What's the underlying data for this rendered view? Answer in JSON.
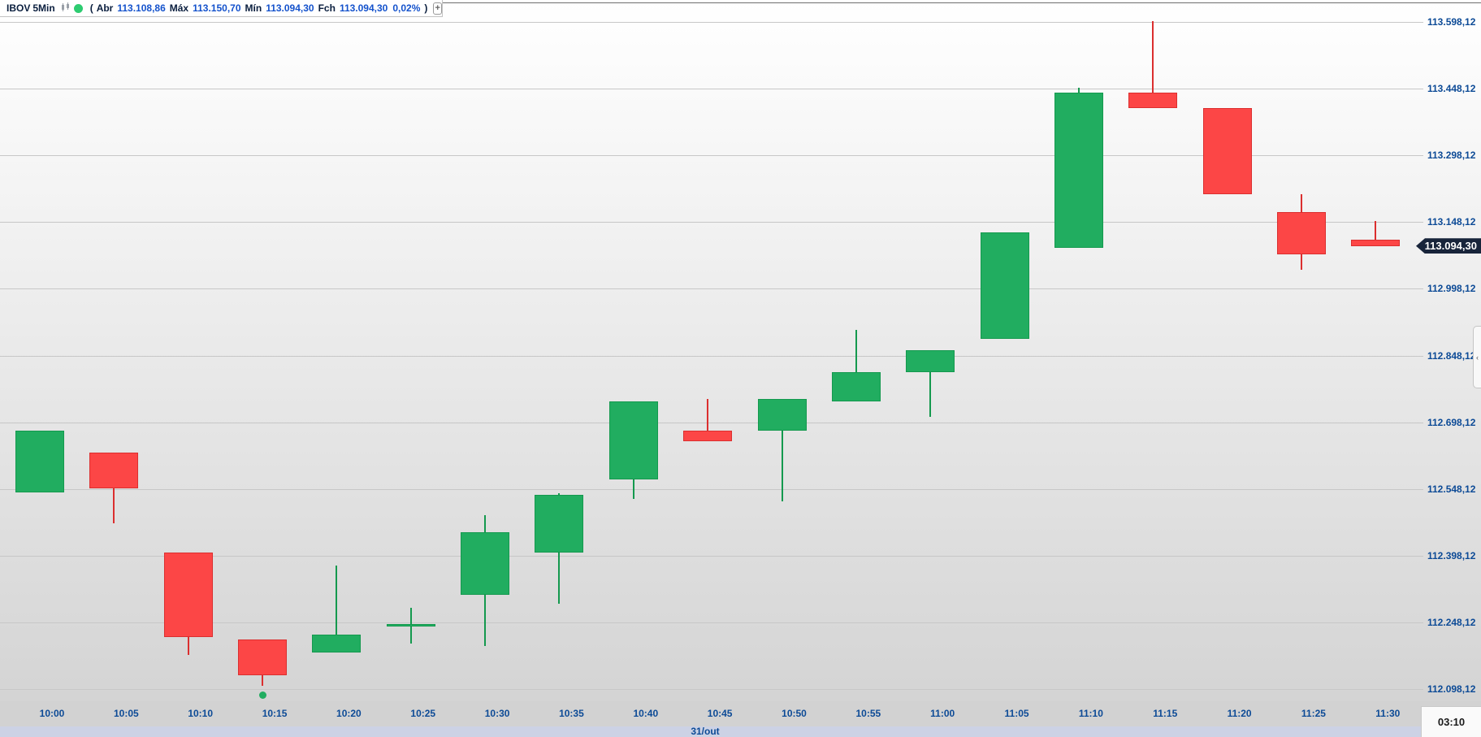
{
  "header": {
    "symbol": "IBOV",
    "timeframe": "5Min",
    "lparen": "(",
    "open_label": "Abr",
    "open_value": "113.108,86",
    "high_label": "Máx",
    "high_value": "113.150,70",
    "low_label": "Mín",
    "low_value": "113.094,30",
    "close_label": "Fch",
    "close_value": "113.094,30",
    "change_percent": "0,02%",
    "rparen": ")",
    "add_button_label": "+"
  },
  "price_axis": {
    "last_price_badge": "113.094,30"
  },
  "time_axis": {
    "date_label": "31/out",
    "countdown": "03:10"
  },
  "side_panel_toggle": "‹",
  "colors": {
    "up_fill": "#21ad60",
    "up_stroke": "#14994e",
    "down_fill": "#fc4646",
    "down_stroke": "#db2f2f",
    "grid": "#c7c7c7",
    "axis_text": "#0c4a96",
    "header_label": "#0a1e3e",
    "header_value": "#1452cc",
    "badge_bg": "#18243a",
    "badge_text": "#ffffff",
    "status_dot": "#2ecc71",
    "marker": "#21ad60"
  },
  "chart_data": {
    "type": "candlestick",
    "symbol": "IBOV",
    "interval": "5Min",
    "date": "31/out",
    "ylim": [
      112070,
      113615
    ],
    "grid": true,
    "last_price": 113094.3,
    "price_ticks": [
      {
        "value": 113598.12,
        "label": "113.598,12"
      },
      {
        "value": 113448.12,
        "label": "113.448,12"
      },
      {
        "value": 113298.12,
        "label": "113.298,12"
      },
      {
        "value": 113148.12,
        "label": "113.148,12"
      },
      {
        "value": 112998.12,
        "label": "112.998,12"
      },
      {
        "value": 112848.12,
        "label": "112.848,12"
      },
      {
        "value": 112698.12,
        "label": "112.698,12"
      },
      {
        "value": 112548.12,
        "label": "112.548,12"
      },
      {
        "value": 112398.12,
        "label": "112.398,12"
      },
      {
        "value": 112248.12,
        "label": "112.248,12"
      },
      {
        "value": 112098.12,
        "label": "112.098,12"
      }
    ],
    "candles": [
      {
        "time": "10:00",
        "open": 112540.0,
        "high": 112680.0,
        "low": 112540.0,
        "close": 112680.0
      },
      {
        "time": "10:05",
        "open": 112630.0,
        "high": 112630.0,
        "low": 112470.0,
        "close": 112550.0
      },
      {
        "time": "10:10",
        "open": 112405.0,
        "high": 112405.0,
        "low": 112175.0,
        "close": 112215.0
      },
      {
        "time": "10:15",
        "open": 112210.0,
        "high": 112210.0,
        "low": 112105.0,
        "close": 112130.0
      },
      {
        "time": "10:20",
        "open": 112180.0,
        "high": 112375.0,
        "low": 112180.0,
        "close": 112220.0
      },
      {
        "time": "10:25",
        "open": 112238.0,
        "high": 112280.0,
        "low": 112200.0,
        "close": 112244.0
      },
      {
        "time": "10:30",
        "open": 112310.0,
        "high": 112490.0,
        "low": 112195.0,
        "close": 112450.0
      },
      {
        "time": "10:35",
        "open": 112405.0,
        "high": 112538.0,
        "low": 112290.0,
        "close": 112535.0
      },
      {
        "time": "10:40",
        "open": 112570.0,
        "high": 112745.0,
        "low": 112525.0,
        "close": 112745.0
      },
      {
        "time": "10:45",
        "open": 112680.0,
        "high": 112750.0,
        "low": 112655.0,
        "close": 112655.0
      },
      {
        "time": "10:50",
        "open": 112680.0,
        "high": 112750.0,
        "low": 112520.0,
        "close": 112750.0
      },
      {
        "time": "10:55",
        "open": 112745.0,
        "high": 112905.0,
        "low": 112745.0,
        "close": 112810.0
      },
      {
        "time": "11:00",
        "open": 112810.0,
        "high": 112860.0,
        "low": 112710.0,
        "close": 112860.0
      },
      {
        "time": "11:05",
        "open": 112885.0,
        "high": 113125.0,
        "low": 112885.0,
        "close": 113125.0
      },
      {
        "time": "11:10",
        "open": 113090.0,
        "high": 113450.0,
        "low": 113090.0,
        "close": 113440.0
      },
      {
        "time": "11:15",
        "open": 113440.0,
        "high": 113600.0,
        "low": 113405.0,
        "close": 113405.0
      },
      {
        "time": "11:20",
        "open": 113405.0,
        "high": 113405.0,
        "low": 113210.0,
        "close": 113210.0
      },
      {
        "time": "11:25",
        "open": 113170.0,
        "high": 113210.0,
        "low": 113040.0,
        "close": 113075.0
      },
      {
        "time": "11:30",
        "open": 113108.86,
        "high": 113150.7,
        "low": 113094.3,
        "close": 113094.3
      }
    ],
    "marker": {
      "time": "10:15",
      "price": 112085,
      "shape": "dot"
    }
  }
}
